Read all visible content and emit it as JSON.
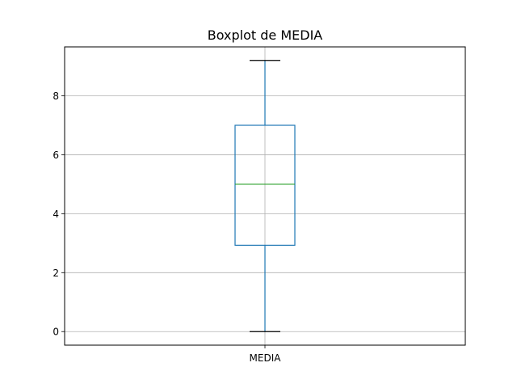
{
  "chart_data": {
    "type": "box",
    "title": "Boxplot de MEDIA",
    "xlabel": "",
    "ylabel": "",
    "categories": [
      "MEDIA"
    ],
    "ylim": [
      -0.46,
      9.66
    ],
    "yticks": [
      0,
      2,
      4,
      6,
      8
    ],
    "grid": true,
    "boxes": [
      {
        "category": "MEDIA",
        "whisker_low": 0,
        "q1": 2.93,
        "median": 5.0,
        "q3": 7.0,
        "whisker_high": 9.2
      }
    ],
    "colors": {
      "box": "#1f77b4",
      "whisker": "#1f77b4",
      "cap": "#000000",
      "median": "#2ca02c",
      "grid": "#b0b0b0",
      "axes": "#000000"
    }
  }
}
